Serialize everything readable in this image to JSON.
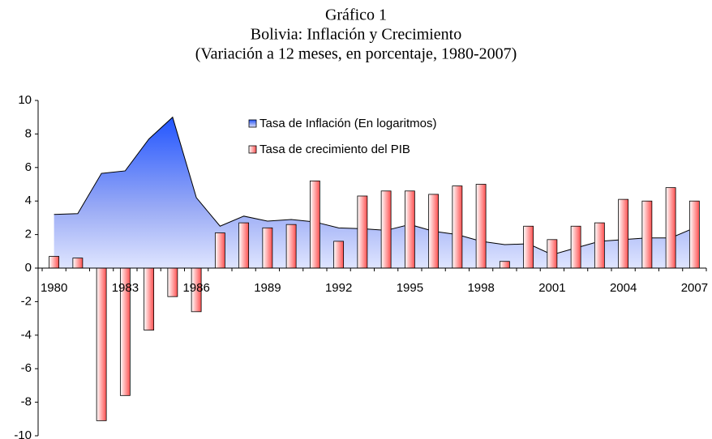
{
  "chart_data": {
    "type": "bar",
    "title": "Gráfico 1",
    "subtitle": "Bolivia: Inflación y Crecimiento",
    "subtitle2": "(Variación a 12 meses, en porcentaje, 1980-2007)",
    "categories": [
      "1980",
      null,
      null,
      "1983",
      null,
      null,
      "1986",
      null,
      null,
      "1989",
      null,
      null,
      "1992",
      null,
      null,
      "1995",
      null,
      null,
      "1998",
      null,
      null,
      "2001",
      null,
      null,
      "2004",
      null,
      null,
      "2007"
    ],
    "series": [
      {
        "name": "Tasa de Inflación (En logaritmos)",
        "type": "area",
        "color": "#3366ff",
        "values": [
          3.2,
          3.25,
          5.65,
          5.8,
          7.7,
          9.0,
          4.2,
          2.5,
          3.1,
          2.8,
          2.9,
          2.75,
          2.4,
          2.35,
          2.25,
          2.6,
          2.2,
          2.0,
          1.6,
          1.4,
          1.45,
          0.8,
          1.2,
          1.6,
          1.7,
          1.8,
          1.8,
          2.4
        ]
      },
      {
        "name": "Tasa de crecimiento del PIB",
        "type": "bar",
        "color": "#ff5050",
        "values": [
          0.7,
          0.6,
          -9.1,
          -7.6,
          -3.7,
          -1.7,
          -2.6,
          2.1,
          2.7,
          2.4,
          2.6,
          5.2,
          1.6,
          4.3,
          4.6,
          4.6,
          4.4,
          4.9,
          5.0,
          0.4,
          2.5,
          1.7,
          2.5,
          2.7,
          4.1,
          4.0,
          4.8,
          4.0
        ]
      }
    ],
    "ylim": [
      -10,
      10
    ],
    "yticks": [
      -10,
      -8,
      -6,
      -4,
      -2,
      0,
      2,
      4,
      6,
      8,
      10
    ]
  }
}
